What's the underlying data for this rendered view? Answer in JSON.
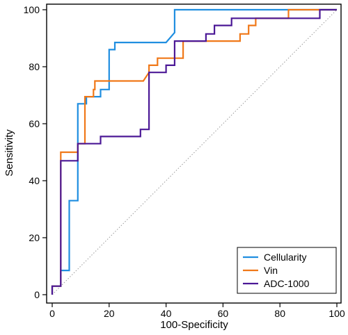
{
  "chart_data": {
    "type": "line",
    "title": "",
    "xlabel": "100-Specificity",
    "ylabel": "Sensitivity",
    "xlim": [
      0,
      100
    ],
    "ylim": [
      0,
      100
    ],
    "xticks": [
      0,
      20,
      40,
      60,
      80,
      100
    ],
    "yticks": [
      0,
      20,
      40,
      60,
      80,
      100
    ],
    "x_tick_labels": [
      "0",
      "20",
      "40",
      "60",
      "80",
      "100"
    ],
    "y_tick_labels": [
      "0",
      "20",
      "40",
      "60",
      "80",
      "100"
    ],
    "grid": false,
    "legend_position": "bottom-right",
    "reference_line": {
      "from": [
        0,
        0
      ],
      "to": [
        100,
        100
      ],
      "style": "dotted",
      "color": "#9a9a9a"
    },
    "series": [
      {
        "name": "Cellularity",
        "color": "#1f8ee0",
        "points": [
          [
            0,
            0
          ],
          [
            0,
            3
          ],
          [
            3,
            3
          ],
          [
            3,
            8.5
          ],
          [
            6,
            8.5
          ],
          [
            6,
            33
          ],
          [
            9,
            33
          ],
          [
            9,
            67
          ],
          [
            12,
            67
          ],
          [
            12,
            69.5
          ],
          [
            17,
            69.5
          ],
          [
            17,
            72
          ],
          [
            20,
            72
          ],
          [
            20,
            86
          ],
          [
            22,
            86
          ],
          [
            22,
            88.5
          ],
          [
            40,
            88.5
          ],
          [
            43,
            92
          ],
          [
            43,
            100
          ],
          [
            100,
            100
          ]
        ]
      },
      {
        "name": "Vin",
        "color": "#f07818",
        "points": [
          [
            0,
            0
          ],
          [
            0,
            3
          ],
          [
            3,
            3
          ],
          [
            3,
            50
          ],
          [
            9,
            50
          ],
          [
            9,
            53
          ],
          [
            11.5,
            53
          ],
          [
            11.5,
            69.5
          ],
          [
            14.5,
            69.5
          ],
          [
            14.5,
            72
          ],
          [
            15,
            72
          ],
          [
            15,
            75
          ],
          [
            32,
            75
          ],
          [
            34,
            78
          ],
          [
            34,
            80.5
          ],
          [
            37,
            80.5
          ],
          [
            37,
            83
          ],
          [
            46,
            83
          ],
          [
            46,
            89
          ],
          [
            63,
            89
          ],
          [
            66,
            89
          ],
          [
            66,
            91.5
          ],
          [
            69,
            91.5
          ],
          [
            69,
            94.5
          ],
          [
            71.5,
            94.5
          ],
          [
            71.5,
            97
          ],
          [
            83,
            97
          ],
          [
            83,
            100
          ],
          [
            100,
            100
          ]
        ]
      },
      {
        "name": "ADC-1000",
        "color": "#4b1896",
        "points": [
          [
            0,
            0
          ],
          [
            0,
            3
          ],
          [
            3,
            3
          ],
          [
            3,
            47
          ],
          [
            9,
            47
          ],
          [
            9,
            53
          ],
          [
            17,
            53
          ],
          [
            17,
            55.5
          ],
          [
            31,
            55.5
          ],
          [
            31,
            58
          ],
          [
            34,
            58
          ],
          [
            34,
            78
          ],
          [
            40,
            78
          ],
          [
            40,
            80.5
          ],
          [
            43,
            80.5
          ],
          [
            43,
            89
          ],
          [
            54,
            89
          ],
          [
            54,
            91.5
          ],
          [
            57,
            91.5
          ],
          [
            57,
            94.5
          ],
          [
            63,
            94.5
          ],
          [
            63,
            97
          ],
          [
            94,
            97
          ],
          [
            94,
            100
          ],
          [
            100,
            100
          ]
        ]
      }
    ]
  }
}
